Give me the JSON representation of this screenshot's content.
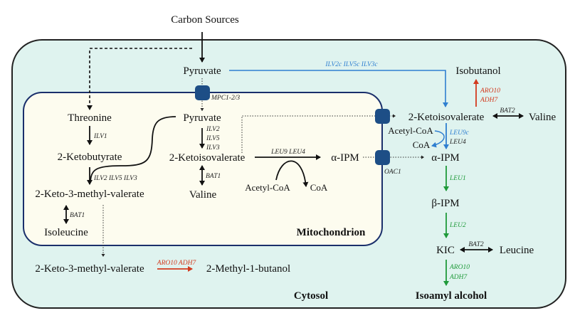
{
  "compartments": {
    "cytosol": "Cytosol",
    "mitochondrion": "Mitochondrion"
  },
  "metabolites": {
    "carbon_sources": "Carbon Sources",
    "pyruvate_cyto": "Pyruvate",
    "pyruvate_mito": "Pyruvate",
    "threonine": "Threonine",
    "ketobutyrate": "2-Ketobutyrate",
    "kmv_mito": "2-Keto-3-methyl-valerate",
    "isoleucine": "Isoleucine",
    "kiv_mito": "2-Ketoisovalerate",
    "valine_mito": "Valine",
    "acetylcoa_mito": "Acetyl-CoA",
    "coa_mito": "CoA",
    "aipm_mito": "α-IPM",
    "kiv_cyto": "2-Ketoisovalerate",
    "isobutanol": "Isobutanol",
    "valine_cyto": "Valine",
    "acetylcoa_cyto": "Acetyl-CoA",
    "coa_cyto": "CoA",
    "aipm_cyto": "α-IPM",
    "bipm": "β-IPM",
    "kic": "KIC",
    "leucine": "Leucine",
    "isoamyl": "Isoamyl alcohol",
    "kmv_cyto": "2-Keto-3-methyl-valerate",
    "methylbutanol": "2-Methyl-1-butanol"
  },
  "enzymes": {
    "ilvc": "ILV2c ILV5c ILV3c",
    "mpc": "MPC1-2/3",
    "ilv1": "ILV1",
    "ilv253_left": "ILV2 ILV5 ILV3",
    "bat1_left": "BAT1",
    "ilv2": "ILV2",
    "ilv5": "ILV5",
    "ilv3": "ILV3",
    "bat1_mid": "BAT1",
    "leu94": "LEU9 LEU4",
    "oac1": "OAC1",
    "aro10_iso": "ARO10",
    "adh7_iso": "ADH7",
    "bat2_val": "BAT2",
    "leu9c": "LEU9c",
    "leu4": "LEU4",
    "leu1": "LEU1",
    "leu2": "LEU2",
    "bat2_leu": "BAT2",
    "aro10_isoamyl": "ARO10",
    "adh7_isoamyl": "ADH7",
    "aro_adh_methylbutanol": "ARO10 ADH7"
  },
  "colors": {
    "cytosol": "#dff3ef",
    "mitochondrion": "#fdfcef",
    "membrane": "#1a2f6b",
    "transporter": "#1d4e86",
    "cytosolic_pathway": "#2f7fd0",
    "alcohol_step": "#d23a1e",
    "leucine_pathway": "#1f9a3a"
  }
}
